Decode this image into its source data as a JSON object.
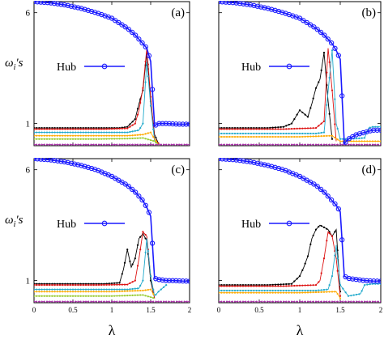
{
  "chart_data": [
    {
      "type": "line",
      "panel_label": "(a)",
      "ylabel": "ω_i's",
      "xlabel": "λ",
      "xlim": [
        0,
        2
      ],
      "ylim": [
        0,
        6.5
      ],
      "y_ticks": [
        "1",
        "6"
      ],
      "x_ticks": [],
      "legend": {
        "label": "Hub",
        "position": "middle-left"
      },
      "series": [
        {
          "color": "#1a1aff",
          "hub": true,
          "x": [
            0,
            0.2,
            0.4,
            0.6,
            0.8,
            1.0,
            1.2,
            1.3,
            1.4,
            1.45,
            1.5,
            1.55,
            1.6,
            1.7,
            1.8,
            1.9,
            2.0
          ],
          "y": [
            6.5,
            6.45,
            6.35,
            6.2,
            6.0,
            5.75,
            5.3,
            5.0,
            4.6,
            4.4,
            3.8,
            0.9,
            1.0,
            1.0,
            0.98,
            0.97,
            0.97
          ]
        },
        {
          "color": "#000000",
          "x": [
            0,
            0.3,
            0.6,
            0.9,
            1.1,
            1.2,
            1.3,
            1.35,
            1.4,
            1.45,
            1.5,
            1.55,
            1.6
          ],
          "y": [
            0.8,
            0.8,
            0.8,
            0.8,
            0.8,
            0.85,
            1.2,
            1.9,
            2.5,
            4.2,
            2.0,
            0.5,
            0.1
          ]
        },
        {
          "color": "#dd1111",
          "x": [
            0,
            0.3,
            0.6,
            0.9,
            1.2,
            1.3,
            1.35,
            1.4,
            1.45,
            1.5,
            1.55,
            1.6
          ],
          "y": [
            0.75,
            0.75,
            0.75,
            0.75,
            0.78,
            1.0,
            1.6,
            2.6,
            4.4,
            2.2,
            0.3,
            0.1
          ]
        },
        {
          "color": "#22aacc",
          "x": [
            0,
            0.4,
            0.8,
            1.2,
            1.35,
            1.4,
            1.45,
            1.5,
            1.55,
            1.6
          ],
          "y": [
            0.6,
            0.6,
            0.6,
            0.6,
            0.7,
            1.0,
            3.8,
            1.8,
            0.2,
            0.05
          ]
        },
        {
          "color": "#ffaa00",
          "x": [
            0,
            0.4,
            0.8,
            1.2,
            1.4,
            1.5,
            1.55,
            1.6
          ],
          "y": [
            0.45,
            0.45,
            0.45,
            0.45,
            0.5,
            0.6,
            0.3,
            0.05
          ]
        },
        {
          "color": "#99cc33",
          "x": [
            0,
            0.4,
            0.8,
            1.2,
            1.4,
            1.55,
            1.6
          ],
          "y": [
            0.3,
            0.3,
            0.3,
            0.32,
            0.35,
            0.2,
            0.05
          ]
        },
        {
          "color": "#aa33aa",
          "x": [
            0,
            0.5,
            1.0,
            1.5,
            2.0
          ],
          "y": [
            0.05,
            0.05,
            0.05,
            0.05,
            0.05
          ]
        }
      ]
    },
    {
      "type": "line",
      "panel_label": "(b)",
      "xlim": [
        0,
        2
      ],
      "ylim": [
        0,
        6.5
      ],
      "x_ticks": [],
      "y_ticks": [],
      "legend": {
        "label": "Hub",
        "position": "middle-left"
      },
      "series": [
        {
          "color": "#1a1aff",
          "hub": true,
          "x": [
            0,
            0.2,
            0.4,
            0.6,
            0.8,
            1.0,
            1.2,
            1.3,
            1.4,
            1.45,
            1.5,
            1.55,
            1.6,
            1.7,
            1.8,
            1.9,
            2.0
          ],
          "y": [
            6.5,
            6.45,
            6.35,
            6.2,
            6.0,
            5.75,
            5.3,
            5.0,
            4.6,
            4.3,
            3.9,
            0.1,
            0.3,
            0.5,
            0.6,
            0.7,
            0.7
          ]
        },
        {
          "color": "#000000",
          "x": [
            0,
            0.3,
            0.6,
            0.8,
            0.9,
            1.0,
            1.1,
            1.15,
            1.2,
            1.25,
            1.3,
            1.35,
            1.4
          ],
          "y": [
            0.8,
            0.8,
            0.8,
            0.85,
            1.0,
            1.6,
            1.3,
            1.9,
            2.6,
            3.0,
            4.2,
            2.0,
            0.3
          ]
        },
        {
          "color": "#dd1111",
          "x": [
            0,
            0.4,
            0.8,
            1.2,
            1.3,
            1.35,
            1.4,
            1.45
          ],
          "y": [
            0.75,
            0.75,
            0.75,
            0.8,
            1.1,
            4.4,
            2.5,
            0.2
          ]
        },
        {
          "color": "#22aacc",
          "x": [
            0,
            0.4,
            0.8,
            1.2,
            1.3,
            1.4,
            1.45,
            1.5,
            1.6,
            1.8,
            1.85,
            1.9,
            2.0
          ],
          "y": [
            0.55,
            0.55,
            0.55,
            0.55,
            0.6,
            4.3,
            1.0,
            0.3,
            0.3,
            0.35,
            0.8,
            0.85,
            0.85
          ]
        },
        {
          "color": "#ffaa00",
          "x": [
            0,
            0.5,
            1.0,
            1.4,
            1.5,
            2.0
          ],
          "y": [
            0.4,
            0.4,
            0.4,
            0.45,
            0.2,
            0.2
          ]
        },
        {
          "color": "#aa33aa",
          "x": [
            0,
            0.5,
            1.0,
            1.5,
            2.0
          ],
          "y": [
            0.05,
            0.05,
            0.05,
            0.05,
            0.05
          ]
        }
      ]
    },
    {
      "type": "line",
      "panel_label": "(c)",
      "ylabel": "ω_i's",
      "xlabel": "λ",
      "xlim": [
        0,
        2
      ],
      "ylim": [
        0,
        6.5
      ],
      "y_ticks": [
        "1",
        "6"
      ],
      "x_ticks": [
        "0",
        "0.5",
        "1",
        "1.5",
        "2"
      ],
      "legend": {
        "label": "Hub",
        "position": "middle-left"
      },
      "series": [
        {
          "color": "#1a1aff",
          "hub": true,
          "x": [
            0,
            0.2,
            0.4,
            0.6,
            0.8,
            1.0,
            1.2,
            1.3,
            1.4,
            1.45,
            1.5,
            1.55,
            1.6,
            1.7,
            1.8,
            1.9,
            2.0
          ],
          "y": [
            6.5,
            6.45,
            6.35,
            6.2,
            6.0,
            5.7,
            5.3,
            5.0,
            4.6,
            4.3,
            3.9,
            1.1,
            1.05,
            1.0,
            1.0,
            0.98,
            0.97
          ]
        },
        {
          "color": "#000000",
          "x": [
            0,
            0.3,
            0.6,
            0.9,
            1.1,
            1.15,
            1.2,
            1.25,
            1.3,
            1.35,
            1.4,
            1.45,
            1.5,
            1.55
          ],
          "y": [
            0.85,
            0.85,
            0.85,
            0.85,
            0.9,
            1.5,
            2.4,
            1.6,
            2.0,
            2.9,
            3.1,
            2.8,
            1.0,
            0.2
          ]
        },
        {
          "color": "#dd1111",
          "x": [
            0,
            0.4,
            0.8,
            1.2,
            1.3,
            1.35,
            1.4,
            1.45,
            1.5,
            1.55
          ],
          "y": [
            0.8,
            0.8,
            0.8,
            0.82,
            1.0,
            2.0,
            3.2,
            3.0,
            1.2,
            0.2
          ]
        },
        {
          "color": "#22aacc",
          "x": [
            0,
            0.4,
            0.8,
            1.2,
            1.35,
            1.4,
            1.45,
            1.5,
            1.55,
            1.6,
            1.7
          ],
          "y": [
            0.6,
            0.6,
            0.6,
            0.6,
            0.65,
            1.0,
            2.9,
            1.2,
            0.3,
            0.5,
            0.8
          ]
        },
        {
          "color": "#ffaa00",
          "x": [
            0,
            0.5,
            1.0,
            1.4,
            1.5,
            1.55
          ],
          "y": [
            0.5,
            0.5,
            0.5,
            0.55,
            0.6,
            0.3
          ]
        },
        {
          "color": "#99cc33",
          "x": [
            0,
            0.5,
            1.0,
            1.4,
            1.55
          ],
          "y": [
            0.3,
            0.3,
            0.3,
            0.35,
            0.2
          ]
        },
        {
          "color": "#aa33aa",
          "x": [
            0,
            0.5,
            1.0,
            1.5,
            2.0
          ],
          "y": [
            0.05,
            0.05,
            0.05,
            0.05,
            0.05
          ]
        }
      ]
    },
    {
      "type": "line",
      "panel_label": "(d)",
      "xlabel": "λ",
      "xlim": [
        0,
        2
      ],
      "ylim": [
        0,
        6.5
      ],
      "y_ticks": [],
      "x_ticks": [
        "0",
        "0.5",
        "1",
        "1.5",
        "2"
      ],
      "legend": {
        "label": "Hub",
        "position": "middle-left"
      },
      "series": [
        {
          "color": "#1a1aff",
          "hub": true,
          "x": [
            0,
            0.2,
            0.4,
            0.6,
            0.8,
            1.0,
            1.2,
            1.3,
            1.4,
            1.45,
            1.5,
            1.55,
            1.6,
            1.7,
            1.8,
            1.9,
            2.0
          ],
          "y": [
            6.5,
            6.45,
            6.35,
            6.2,
            6.0,
            5.7,
            5.3,
            5.0,
            4.6,
            4.4,
            4.1,
            1.2,
            1.1,
            1.05,
            1.0,
            0.98,
            0.97
          ]
        },
        {
          "color": "#000000",
          "x": [
            0,
            0.3,
            0.6,
            0.9,
            1.0,
            1.05,
            1.1,
            1.15,
            1.2,
            1.25,
            1.3,
            1.35,
            1.4,
            1.45,
            1.5
          ],
          "y": [
            0.8,
            0.8,
            0.8,
            0.85,
            1.2,
            1.6,
            2.1,
            2.9,
            3.3,
            3.5,
            3.4,
            3.3,
            3.0,
            3.3,
            0.5
          ]
        },
        {
          "color": "#dd1111",
          "x": [
            0,
            0.4,
            0.8,
            1.2,
            1.25,
            1.3,
            1.35,
            1.4,
            1.45,
            1.5
          ],
          "y": [
            0.75,
            0.75,
            0.75,
            0.8,
            1.0,
            2.0,
            3.2,
            3.0,
            2.0,
            0.3
          ]
        },
        {
          "color": "#22aacc",
          "x": [
            0,
            0.4,
            0.8,
            1.2,
            1.35,
            1.4,
            1.45,
            1.5,
            1.6,
            1.75,
            1.8,
            1.9,
            2.0
          ],
          "y": [
            0.55,
            0.55,
            0.55,
            0.55,
            0.6,
            1.2,
            2.6,
            0.8,
            0.3,
            0.4,
            0.8,
            0.85,
            0.85
          ]
        },
        {
          "color": "#ffaa00",
          "x": [
            0,
            0.5,
            1.0,
            1.45,
            1.5
          ],
          "y": [
            0.45,
            0.45,
            0.45,
            0.5,
            0.2
          ]
        },
        {
          "color": "#aa33aa",
          "x": [
            0,
            0.5,
            1.0,
            1.5,
            2.0
          ],
          "y": [
            0.05,
            0.05,
            0.05,
            0.05,
            0.05
          ]
        }
      ]
    }
  ]
}
